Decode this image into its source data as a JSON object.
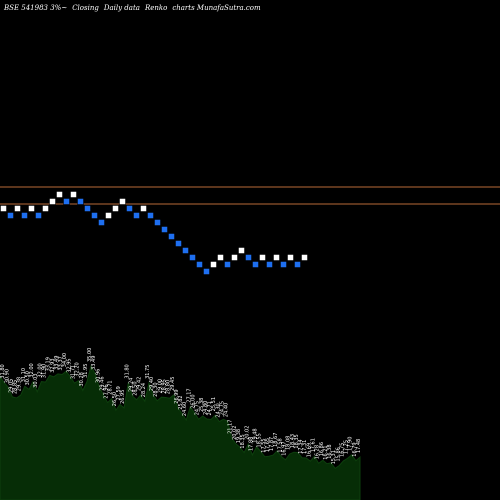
{
  "header": {
    "symbol": "BSE 541983 3%~",
    "desc_1": "Closing",
    "desc_2": "Daily data",
    "desc_3": "Renko",
    "desc_4": "charts MunafaSutra.com"
  },
  "colors": {
    "background": "#000000",
    "up_brick": "#ffffff",
    "down_brick": "#1e6ff0",
    "brick_outline": "#000000",
    "reference_line": "#b86a38",
    "area_fill": "#062d06",
    "area_edge": "#0d3f0d",
    "label": "#ffffff"
  },
  "chart_data": {
    "type": "renko",
    "grid": false,
    "reference_lines": [
      "upper",
      "lower"
    ],
    "bricks": [
      {
        "dir": "up",
        "level": 0
      },
      {
        "dir": "down",
        "level": -1
      },
      {
        "dir": "up",
        "level": 0
      },
      {
        "dir": "down",
        "level": -1
      },
      {
        "dir": "up",
        "level": 0
      },
      {
        "dir": "down",
        "level": -1
      },
      {
        "dir": "up",
        "level": 0
      },
      {
        "dir": "up",
        "level": 1
      },
      {
        "dir": "up",
        "level": 2
      },
      {
        "dir": "down",
        "level": 1
      },
      {
        "dir": "up",
        "level": 2
      },
      {
        "dir": "down",
        "level": 1
      },
      {
        "dir": "down",
        "level": 0
      },
      {
        "dir": "down",
        "level": -1
      },
      {
        "dir": "down",
        "level": -2
      },
      {
        "dir": "up",
        "level": -1
      },
      {
        "dir": "up",
        "level": 0
      },
      {
        "dir": "up",
        "level": 1
      },
      {
        "dir": "down",
        "level": 0
      },
      {
        "dir": "down",
        "level": -1
      },
      {
        "dir": "up",
        "level": 0
      },
      {
        "dir": "down",
        "level": -1
      },
      {
        "dir": "down",
        "level": -2
      },
      {
        "dir": "down",
        "level": -3
      },
      {
        "dir": "down",
        "level": -4
      },
      {
        "dir": "down",
        "level": -5
      },
      {
        "dir": "down",
        "level": -6
      },
      {
        "dir": "down",
        "level": -7
      },
      {
        "dir": "down",
        "level": -8
      },
      {
        "dir": "down",
        "level": -9
      },
      {
        "dir": "up",
        "level": -8
      },
      {
        "dir": "up",
        "level": -7
      },
      {
        "dir": "down",
        "level": -8
      },
      {
        "dir": "up",
        "level": -7
      },
      {
        "dir": "up",
        "level": -6
      },
      {
        "dir": "down",
        "level": -7
      },
      {
        "dir": "down",
        "level": -8
      },
      {
        "dir": "up",
        "level": -7
      },
      {
        "dir": "down",
        "level": -8
      },
      {
        "dir": "up",
        "level": -7
      },
      {
        "dir": "down",
        "level": -8
      },
      {
        "dir": "up",
        "level": -7
      },
      {
        "dir": "down",
        "level": -8
      },
      {
        "dir": "up",
        "level": -7
      }
    ],
    "value_labels": [
      "33.00",
      "31.80",
      "30.90",
      "29.05",
      "28.85",
      "29.38",
      "31.10",
      "30.50",
      "32.00",
      "30.03",
      "32.00",
      "31.90",
      "33.19",
      "32.93",
      "33.49",
      "33.37",
      "34.00",
      "32.95",
      "31.71",
      "32.20",
      "30.28",
      "31.95",
      "35.00",
      "33.49",
      "30.96",
      "29.46",
      "27.96",
      "28.71",
      "26.50",
      "27.59",
      "26.95",
      "31.80",
      "29.24",
      "28.50",
      "29.42",
      "28.24",
      "31.75",
      "29.40",
      "28.30",
      "29.00",
      "28.95",
      "28.80",
      "29.45",
      "26.99",
      "25.82",
      "24.60",
      "27.17",
      "26.00",
      "24.75",
      "25.38",
      "24.80",
      "24.71",
      "25.51",
      "24.30",
      "24.75",
      "24.40",
      "21.17",
      "20.02",
      "19.38",
      "18.35",
      "20.02",
      "17.88",
      "19.48",
      "18.55",
      "17.55",
      "17.65",
      "17.87",
      "18.67",
      "17.58",
      "16.97",
      "18.08",
      "18.43",
      "18.35",
      "17.34",
      "17.31",
      "16.69",
      "17.61",
      "16.28",
      "16.86",
      "16.21",
      "16.38",
      "15.31",
      "15.86",
      "16.75",
      "17.25",
      "17.90",
      "16.79",
      "17.48"
    ]
  }
}
